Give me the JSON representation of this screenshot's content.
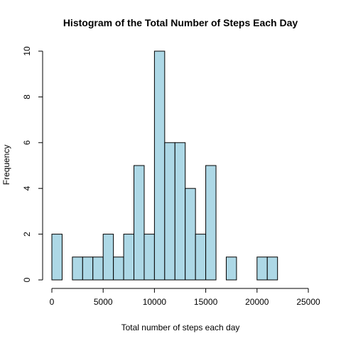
{
  "chart_data": {
    "type": "bar",
    "title": "Histogram of the Total Number of Steps Each Day",
    "xlabel": "Total number of steps each day",
    "ylabel": "Frequency",
    "bin_width": 1000,
    "bins": [
      {
        "start": 0,
        "end": 1000,
        "count": 2
      },
      {
        "start": 1000,
        "end": 2000,
        "count": 0
      },
      {
        "start": 2000,
        "end": 3000,
        "count": 1
      },
      {
        "start": 3000,
        "end": 4000,
        "count": 1
      },
      {
        "start": 4000,
        "end": 5000,
        "count": 1
      },
      {
        "start": 5000,
        "end": 6000,
        "count": 2
      },
      {
        "start": 6000,
        "end": 7000,
        "count": 1
      },
      {
        "start": 7000,
        "end": 8000,
        "count": 2
      },
      {
        "start": 8000,
        "end": 9000,
        "count": 5
      },
      {
        "start": 9000,
        "end": 10000,
        "count": 2
      },
      {
        "start": 10000,
        "end": 11000,
        "count": 10
      },
      {
        "start": 11000,
        "end": 12000,
        "count": 6
      },
      {
        "start": 12000,
        "end": 13000,
        "count": 6
      },
      {
        "start": 13000,
        "end": 14000,
        "count": 4
      },
      {
        "start": 14000,
        "end": 15000,
        "count": 2
      },
      {
        "start": 15000,
        "end": 16000,
        "count": 5
      },
      {
        "start": 16000,
        "end": 17000,
        "count": 0
      },
      {
        "start": 17000,
        "end": 18000,
        "count": 1
      },
      {
        "start": 18000,
        "end": 19000,
        "count": 0
      },
      {
        "start": 19000,
        "end": 20000,
        "count": 0
      },
      {
        "start": 20000,
        "end": 21000,
        "count": 1
      },
      {
        "start": 21000,
        "end": 22000,
        "count": 1
      }
    ],
    "xlim": [
      0,
      25000
    ],
    "ylim": [
      0,
      10
    ],
    "x_ticks": [
      "0",
      "5000",
      "10000",
      "15000",
      "20000",
      "25000"
    ],
    "y_ticks": [
      "0",
      "2",
      "4",
      "6",
      "8",
      "10"
    ],
    "bar_color": "#add8e6",
    "grid": false
  }
}
